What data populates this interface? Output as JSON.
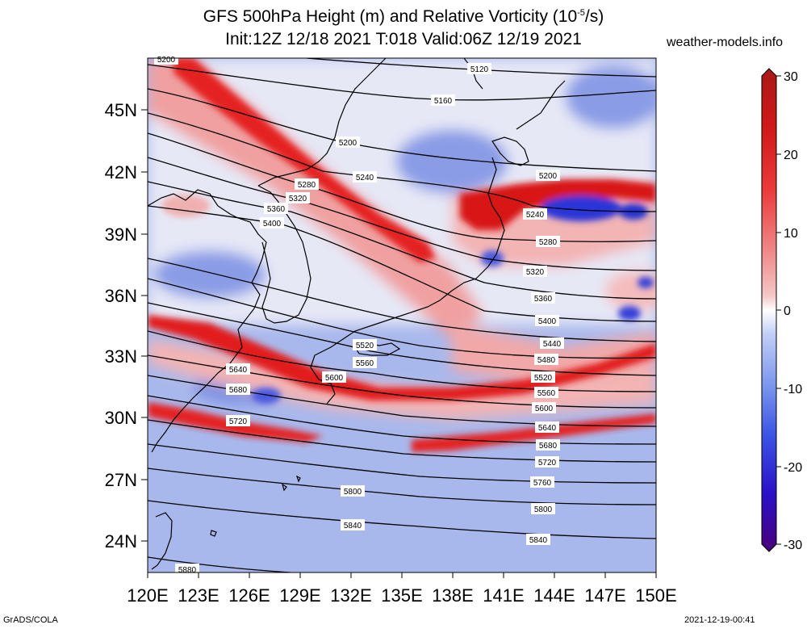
{
  "title": {
    "line1": "GFS 500hPa Height (m) and Relative Vorticity (10",
    "line1_sup": "-5",
    "line1_end": "/s)",
    "line2": "Init:12Z 12/18 2021 T:018 Valid:06Z 12/19 2021"
  },
  "site": "weather-models.info",
  "footer": {
    "left": "GrADS/COLA",
    "right": "2021-12-19-00:41"
  },
  "lat_labels": [
    "45N",
    "42N",
    "39N",
    "36N",
    "33N",
    "30N",
    "27N",
    "24N"
  ],
  "lon_labels": [
    "120E",
    "123E",
    "126E",
    "129E",
    "132E",
    "135E",
    "138E",
    "141E",
    "144E",
    "147E",
    "150E"
  ],
  "colorbar": {
    "ticks": [
      "30",
      "20",
      "10",
      "0",
      "-10",
      "-20",
      "-30"
    ],
    "colors": [
      "#4a007a",
      "#2a10c8",
      "#3b54e4",
      "#7f9aee",
      "#c2cef6",
      "#ffffff",
      "#f5c6c6",
      "#f08a8a",
      "#ea3a3a",
      "#d01818",
      "#a81818"
    ]
  },
  "contour_labels": [
    "5120",
    "5160",
    "5200",
    "5200",
    "5200",
    "5240",
    "5240",
    "5280",
    "5280",
    "5320",
    "5320",
    "5360",
    "5360",
    "5400",
    "5400",
    "5440",
    "5480",
    "5520",
    "5520",
    "5560",
    "5560",
    "5600",
    "5600",
    "5640",
    "5640",
    "5680",
    "5680",
    "5720",
    "5720",
    "5760",
    "5800",
    "5800",
    "5840",
    "5840",
    "5880"
  ]
}
